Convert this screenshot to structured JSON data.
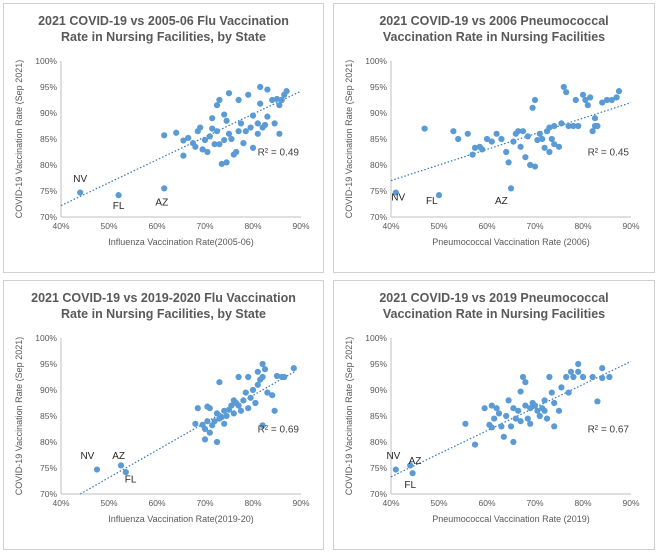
{
  "charts": [
    {
      "chart_data": {
        "type": "scatter",
        "title": [
          "2021 COVID-19 vs 2005-06 Flu Vaccination",
          "Rate in Nursing Facilities, by State"
        ],
        "xlabel": "Influenza Vaccination Rate(2005-06)",
        "ylabel": "COVID-19 Vaccination Rate (Sep 2021)",
        "xlim": [
          40,
          90
        ],
        "ylim": [
          70,
          100
        ],
        "xticks": [
          "40%",
          "50%",
          "60%",
          "70%",
          "80%",
          "90%"
        ],
        "yticks": [
          "70%",
          "75%",
          "80%",
          "85%",
          "90%",
          "95%",
          "100%"
        ],
        "grid": false,
        "trendline": {
          "style": "dotted linear",
          "start": [
            40,
            72.2
          ],
          "end": [
            90,
            94.2
          ]
        },
        "r2": "R² = 0.49",
        "labels": [
          {
            "text": "NV",
            "x": 44,
            "y": 76.7
          },
          {
            "text": "FL",
            "x": 52,
            "y": 71.5
          },
          {
            "text": "AZ",
            "x": 61,
            "y": 72.2
          }
        ],
        "points": [
          [
            44,
            74.7
          ],
          [
            52,
            74.2
          ],
          [
            61.5,
            75.5
          ],
          [
            61.5,
            85.7
          ],
          [
            64,
            86.2
          ],
          [
            65.5,
            84.7
          ],
          [
            65.5,
            81.8
          ],
          [
            66.5,
            85.2
          ],
          [
            67.5,
            84.2
          ],
          [
            68,
            83.5
          ],
          [
            68.5,
            86.5
          ],
          [
            69,
            87.2
          ],
          [
            69.5,
            83
          ],
          [
            70,
            84.8
          ],
          [
            70.5,
            82.5
          ],
          [
            71,
            85.5
          ],
          [
            71.5,
            87
          ],
          [
            71.5,
            89
          ],
          [
            72,
            84
          ],
          [
            72.5,
            86.5
          ],
          [
            72.5,
            91.5
          ],
          [
            73,
            92.5
          ],
          [
            73,
            84
          ],
          [
            73.5,
            80.2
          ],
          [
            74,
            84.8
          ],
          [
            74,
            89.7
          ],
          [
            74.5,
            88.5
          ],
          [
            74.5,
            80.5
          ],
          [
            75,
            86
          ],
          [
            75,
            93.8
          ],
          [
            75.5,
            85
          ],
          [
            76,
            82
          ],
          [
            76.5,
            82.5
          ],
          [
            77,
            86.5
          ],
          [
            77,
            92.5
          ],
          [
            77.5,
            88
          ],
          [
            78,
            84.2
          ],
          [
            78.5,
            86.5
          ],
          [
            79,
            93.5
          ],
          [
            79.5,
            87.2
          ],
          [
            80,
            89.5
          ],
          [
            80,
            83.3
          ],
          [
            81,
            86
          ],
          [
            81,
            88
          ],
          [
            81.5,
            95
          ],
          [
            81.5,
            91.8
          ],
          [
            82,
            87.2
          ],
          [
            82.5,
            87.7
          ],
          [
            83,
            89.3
          ],
          [
            83,
            94.5
          ],
          [
            84,
            92.5
          ],
          [
            84.5,
            88
          ],
          [
            85,
            92.7
          ],
          [
            85.5,
            91.5
          ],
          [
            85.5,
            86
          ],
          [
            86,
            92.5
          ],
          [
            86.5,
            93.5
          ],
          [
            87,
            94.2
          ]
        ]
      }
    },
    {
      "chart_data": {
        "type": "scatter",
        "title": [
          "2021 COVID-19 vs 2006 Pneumococcal",
          "Vaccination Rate in Nursing Facilities"
        ],
        "xlabel": "Pneumococcal Vaccination Rate (2006)",
        "ylabel": "COVID-19 Vaccination Rate (Sep 2021)",
        "xlim": [
          40,
          90
        ],
        "ylim": [
          70,
          100
        ],
        "xticks": [
          "40%",
          "50%",
          "60%",
          "70%",
          "80%",
          "90%"
        ],
        "yticks": [
          "70%",
          "75%",
          "80%",
          "85%",
          "90%",
          "95%",
          "100%"
        ],
        "grid": false,
        "trendline": {
          "style": "dotted linear",
          "start": [
            40,
            77
          ],
          "end": [
            90,
            92
          ]
        },
        "r2": "R² = 0.45",
        "labels": [
          {
            "text": "NV",
            "x": 41.5,
            "y": 73.2
          },
          {
            "text": "FL",
            "x": 48.5,
            "y": 72.5
          },
          {
            "text": "AZ",
            "x": 63,
            "y": 72.5
          }
        ],
        "points": [
          [
            41,
            74.7
          ],
          [
            47,
            87
          ],
          [
            50,
            74.2
          ],
          [
            53,
            86.5
          ],
          [
            54,
            85
          ],
          [
            56,
            86
          ],
          [
            57,
            82
          ],
          [
            57.5,
            83.3
          ],
          [
            58.5,
            83.5
          ],
          [
            59,
            83
          ],
          [
            60,
            85
          ],
          [
            61,
            84.5
          ],
          [
            62,
            86
          ],
          [
            63,
            85
          ],
          [
            64,
            82.5
          ],
          [
            64.5,
            80.5
          ],
          [
            65,
            75.5
          ],
          [
            65.5,
            84.5
          ],
          [
            66,
            86
          ],
          [
            66.5,
            86.5
          ],
          [
            67,
            83.5
          ],
          [
            67.5,
            86.5
          ],
          [
            68,
            81.5
          ],
          [
            68.5,
            85.5
          ],
          [
            69,
            80
          ],
          [
            69.5,
            91
          ],
          [
            70,
            92.5
          ],
          [
            70,
            79.7
          ],
          [
            70.5,
            84.8
          ],
          [
            71,
            86
          ],
          [
            71.5,
            85
          ],
          [
            72,
            83.3
          ],
          [
            72.5,
            86.5
          ],
          [
            73,
            87.2
          ],
          [
            73,
            82.5
          ],
          [
            73.5,
            85
          ],
          [
            74,
            84
          ],
          [
            74,
            87.5
          ],
          [
            75,
            83.5
          ],
          [
            75.5,
            88
          ],
          [
            76,
            95
          ],
          [
            76.5,
            94
          ],
          [
            77,
            87.5
          ],
          [
            78,
            87.5
          ],
          [
            78.5,
            92.5
          ],
          [
            79,
            87.5
          ],
          [
            80,
            93.5
          ],
          [
            80.5,
            92.5
          ],
          [
            81,
            91.5
          ],
          [
            81.5,
            93
          ],
          [
            82,
            86.5
          ],
          [
            82.5,
            87.5
          ],
          [
            82.5,
            89
          ],
          [
            83,
            87.5
          ],
          [
            84,
            92
          ],
          [
            85,
            92.5
          ],
          [
            86,
            92.5
          ],
          [
            87,
            93
          ],
          [
            87.5,
            94.2
          ]
        ]
      }
    },
    {
      "chart_data": {
        "type": "scatter",
        "title": [
          "2021 COVID-19 vs 2019-2020 Flu Vaccination",
          "Rate in Nursing Facilities, by State"
        ],
        "xlabel": "Influenza Vaccination Rate(2019-20)",
        "ylabel": "COVID-19 Vaccination Rate (Sep 2021)",
        "xlim": [
          40,
          90
        ],
        "ylim": [
          70,
          100
        ],
        "xticks": [
          "40%",
          "50%",
          "60%",
          "70%",
          "80%",
          "90%"
        ],
        "yticks": [
          "70%",
          "75%",
          "80%",
          "85%",
          "90%",
          "95%",
          "100%"
        ],
        "grid": false,
        "trendline": {
          "style": "dotted linear",
          "start": [
            44,
            70
          ],
          "end": [
            89,
            93.7
          ]
        },
        "r2": "R² = 0.69",
        "labels": [
          {
            "text": "NV",
            "x": 45.5,
            "y": 76.7
          },
          {
            "text": "AZ",
            "x": 52,
            "y": 76.7
          },
          {
            "text": "FL",
            "x": 54.5,
            "y": 72.2
          }
        ],
        "points": [
          [
            47.5,
            74.7
          ],
          [
            52.5,
            75.5
          ],
          [
            53.5,
            74.2
          ],
          [
            68,
            83.5
          ],
          [
            68.5,
            86.5
          ],
          [
            69.5,
            83.3
          ],
          [
            70,
            80.5
          ],
          [
            70,
            82.5
          ],
          [
            70.5,
            86.8
          ],
          [
            70.5,
            84
          ],
          [
            71,
            86.5
          ],
          [
            71,
            81.8
          ],
          [
            71.5,
            83.2
          ],
          [
            72,
            84
          ],
          [
            72.5,
            80
          ],
          [
            72.5,
            85.5
          ],
          [
            73,
            84.5
          ],
          [
            73,
            91.5
          ],
          [
            73.5,
            84.8
          ],
          [
            74,
            86
          ],
          [
            74,
            83.5
          ],
          [
            74.5,
            85
          ],
          [
            75,
            86.2
          ],
          [
            75.5,
            87
          ],
          [
            76,
            85.5
          ],
          [
            76,
            88
          ],
          [
            76.5,
            87.5
          ],
          [
            77,
            87
          ],
          [
            77,
            92.5
          ],
          [
            77.5,
            86
          ],
          [
            78,
            88
          ],
          [
            78.5,
            89.5
          ],
          [
            79,
            86.5
          ],
          [
            79,
            92.5
          ],
          [
            79.5,
            88.5
          ],
          [
            80,
            90
          ],
          [
            80.5,
            87.5
          ],
          [
            81,
            91
          ],
          [
            81,
            93.5
          ],
          [
            81.5,
            92
          ],
          [
            82,
            95
          ],
          [
            82,
            92.5
          ],
          [
            82,
            83.2
          ],
          [
            82.5,
            94
          ],
          [
            83,
            89.5
          ],
          [
            84,
            89
          ],
          [
            84.5,
            86
          ],
          [
            85,
            92.7
          ],
          [
            86,
            92.5
          ],
          [
            86.5,
            92.5
          ],
          [
            88.5,
            94.2
          ]
        ]
      }
    },
    {
      "chart_data": {
        "type": "scatter",
        "title": [
          "2021 COVID-19 vs 2019 Pneumococcal",
          "Vaccination Rate in Nursing Facilities"
        ],
        "xlabel": "Pneumococcal Vaccination Rate (2019)",
        "ylabel": "COVID-19 Vaccination Rate (Sep 2021)",
        "xlim": [
          40,
          90
        ],
        "ylim": [
          70,
          100
        ],
        "xticks": [
          "40%",
          "50%",
          "60%",
          "70%",
          "80%",
          "90%"
        ],
        "yticks": [
          "70%",
          "75%",
          "80%",
          "85%",
          "90%",
          "95%",
          "100%"
        ],
        "grid": false,
        "trendline": {
          "style": "dotted linear",
          "start": [
            40,
            73.3
          ],
          "end": [
            90,
            95.5
          ]
        },
        "r2": "R² = 0.67",
        "labels": [
          {
            "text": "NV",
            "x": 40.5,
            "y": 76.7
          },
          {
            "text": "AZ",
            "x": 45,
            "y": 75.8
          },
          {
            "text": "FL",
            "x": 44,
            "y": 71.2
          }
        ],
        "points": [
          [
            41,
            74.7
          ],
          [
            44,
            75.5
          ],
          [
            44.5,
            74
          ],
          [
            55.5,
            83.5
          ],
          [
            57.5,
            79.5
          ],
          [
            59.5,
            86.5
          ],
          [
            60.5,
            83.3
          ],
          [
            61,
            87
          ],
          [
            61,
            82.8
          ],
          [
            61.5,
            84.5
          ],
          [
            62,
            86.5
          ],
          [
            62.5,
            85.5
          ],
          [
            63,
            83
          ],
          [
            63.5,
            81
          ],
          [
            64,
            85
          ],
          [
            64.5,
            88
          ],
          [
            65,
            83
          ],
          [
            65.5,
            80
          ],
          [
            65.5,
            86.5
          ],
          [
            66,
            84.5
          ],
          [
            66.5,
            86
          ],
          [
            67,
            84
          ],
          [
            67,
            89.7
          ],
          [
            67.5,
            92.5
          ],
          [
            68,
            87
          ],
          [
            68,
            91.5
          ],
          [
            68.5,
            84.5
          ],
          [
            69,
            86.5
          ],
          [
            69,
            83.5
          ],
          [
            69.5,
            87.5
          ],
          [
            70,
            87
          ],
          [
            70.5,
            86
          ],
          [
            71,
            85
          ],
          [
            71.5,
            86.5
          ],
          [
            72,
            86
          ],
          [
            72,
            88
          ],
          [
            72.5,
            84.5
          ],
          [
            73,
            92.5
          ],
          [
            73.5,
            89.5
          ],
          [
            74,
            87.5
          ],
          [
            74,
            83
          ],
          [
            75,
            86
          ],
          [
            75.5,
            90.5
          ],
          [
            76.5,
            92.5
          ],
          [
            77,
            89.5
          ],
          [
            77.5,
            93.5
          ],
          [
            78,
            92.5
          ],
          [
            79,
            95
          ],
          [
            79,
            93.5
          ],
          [
            80,
            92.5
          ],
          [
            82,
            92.5
          ],
          [
            83,
            87.8
          ],
          [
            84,
            92.3
          ],
          [
            84,
            94.2
          ],
          [
            85.5,
            92.5
          ]
        ]
      }
    }
  ]
}
